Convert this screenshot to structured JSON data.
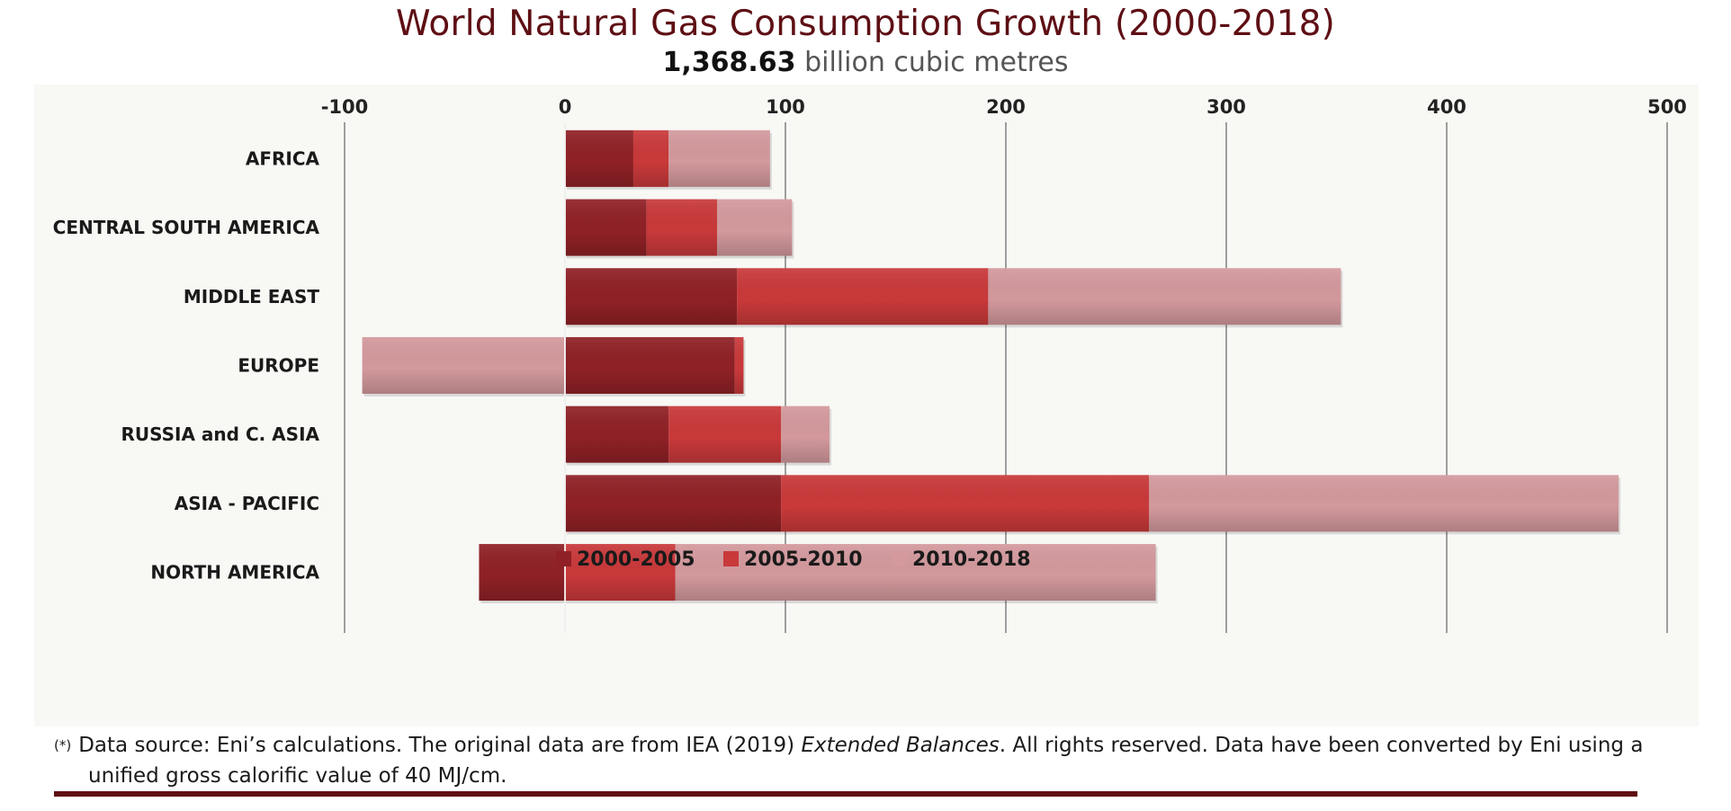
{
  "title": "World Natural Gas Consumption Growth (2000-2018)",
  "subtitle_value": "1,368.63",
  "subtitle_unit": "billion cubic metres",
  "colors": {
    "title": "#5e0f14",
    "series_2000_2005": "#8f2126",
    "series_2005_2010": "#c9393a",
    "series_2010_2018": "#d3999d",
    "plot_background": "#f8f8f5",
    "grid": "#6e6e6e"
  },
  "chart_data": {
    "type": "bar",
    "orientation": "horizontal",
    "stacked": true,
    "categories": [
      "AFRICA",
      "CENTRAL SOUTH AMERICA",
      "MIDDLE EAST",
      "EUROPE",
      "RUSSIA and C. ASIA",
      "ASIA - PACIFIC",
      "NORTH AMERICA"
    ],
    "series": [
      {
        "name": "2000-2005",
        "values": [
          31,
          37,
          78,
          77,
          47,
          98,
          -39
        ]
      },
      {
        "name": "2005-2010",
        "values": [
          16,
          32,
          114,
          4,
          51,
          167,
          50
        ]
      },
      {
        "name": "2010-2018",
        "values": [
          46,
          34,
          160,
          -92,
          22,
          213,
          218
        ]
      }
    ],
    "xlim": [
      -100,
      500
    ],
    "x_ticks": [
      "-100",
      "0",
      "100",
      "200",
      "300",
      "400",
      "500"
    ],
    "x_tick_values": [
      -100,
      0,
      100,
      200,
      300,
      400,
      500
    ],
    "xlabel": "",
    "ylabel": "",
    "grid": true,
    "legend_position": "bottom"
  },
  "footnote": {
    "marker": "(*)",
    "text_before": "Data source:  Eni’s calculations. The original data are from IEA (2019) ",
    "italic": "Extended Balances",
    "text_after": ". All rights reserved. Data have been converted by Eni using a",
    "line2": "unified gross calorific value of 40 MJ/cm."
  }
}
